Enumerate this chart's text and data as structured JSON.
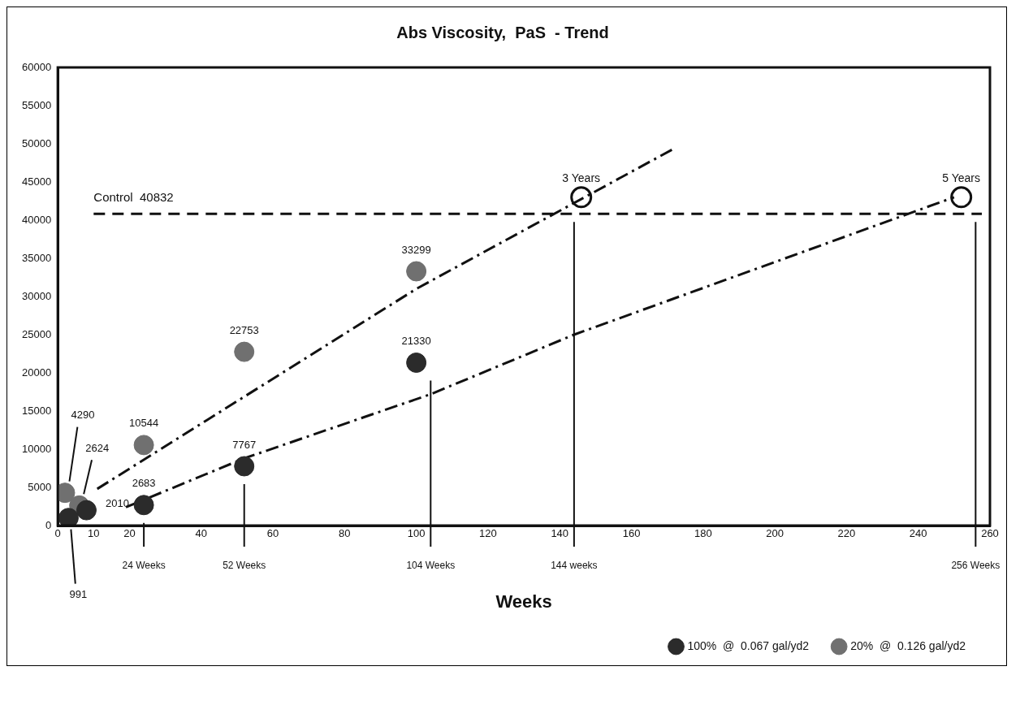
{
  "chart_data": {
    "type": "scatter",
    "title": "Abs Viscosity,  PaS  - Trend",
    "xlabel": "Weeks",
    "xlim": [
      0,
      260
    ],
    "xticks": [
      0,
      10,
      20,
      40,
      60,
      80,
      100,
      120,
      140,
      160,
      180,
      200,
      220,
      240,
      260
    ],
    "ylim": [
      0,
      60000
    ],
    "yticks": [
      0,
      5000,
      10000,
      15000,
      20000,
      25000,
      30000,
      35000,
      40000,
      45000,
      50000,
      55000,
      60000
    ],
    "grid": false,
    "legend": "bottom right",
    "marker": "circle",
    "series": [
      {
        "name": "100%  @  0.067 gal/yd2",
        "color": "#2b2b2b",
        "x": [
          3,
          8,
          24,
          52,
          100
        ],
        "values": [
          991,
          2010,
          2683,
          7767,
          21330
        ],
        "value_labels": [
          "991",
          "2010",
          "2683",
          "7767",
          "21330"
        ]
      },
      {
        "name": "20%  @  0.126 gal/yd2",
        "color": "#707070",
        "x": [
          2,
          6,
          24,
          52,
          100
        ],
        "values": [
          4290,
          2624,
          10544,
          22753,
          33299
        ],
        "value_labels": [
          "4290",
          "2624",
          "10544",
          "22753",
          "33299"
        ]
      },
      {
        "type": "line",
        "color": "#111111",
        "line_style": "dashed",
        "marker": "none",
        "x": [
          11,
          100,
          172
        ],
        "values": [
          4800,
          31000,
          49400
        ]
      },
      {
        "type": "line",
        "color": "#111111",
        "line_style": "dashed",
        "marker": "none",
        "x": [
          19,
          52,
          104,
          144,
          250
        ],
        "values": [
          2400,
          8800,
          17200,
          25000,
          43000
        ]
      },
      {
        "color": "#111111",
        "marker": "circle",
        "x": [
          146,
          252
        ],
        "values": [
          43000,
          43000
        ]
      }
    ],
    "ref_lines": [
      {
        "axis": "y",
        "value": 40832,
        "label": "Control  40832",
        "line_style": "dashed",
        "color": "#111111"
      },
      {
        "axis": "x",
        "value": 24,
        "label": "24 Weeks",
        "color": "#111111"
      },
      {
        "axis": "x",
        "value": 52,
        "label": "52 Weeks",
        "color": "#111111"
      },
      {
        "axis": "x",
        "value": 104,
        "label": "104 Weeks",
        "color": "#111111"
      },
      {
        "axis": "x",
        "value": 144,
        "label": "144 weeks",
        "color": "#111111"
      },
      {
        "axis": "x",
        "value": 256,
        "label": "256 Weeks",
        "color": "#111111"
      }
    ],
    "annotations": [
      {
        "text": "3 Years",
        "x": 146,
        "y": 43000
      },
      {
        "text": "5 Years",
        "x": 252,
        "y": 43000
      }
    ]
  }
}
